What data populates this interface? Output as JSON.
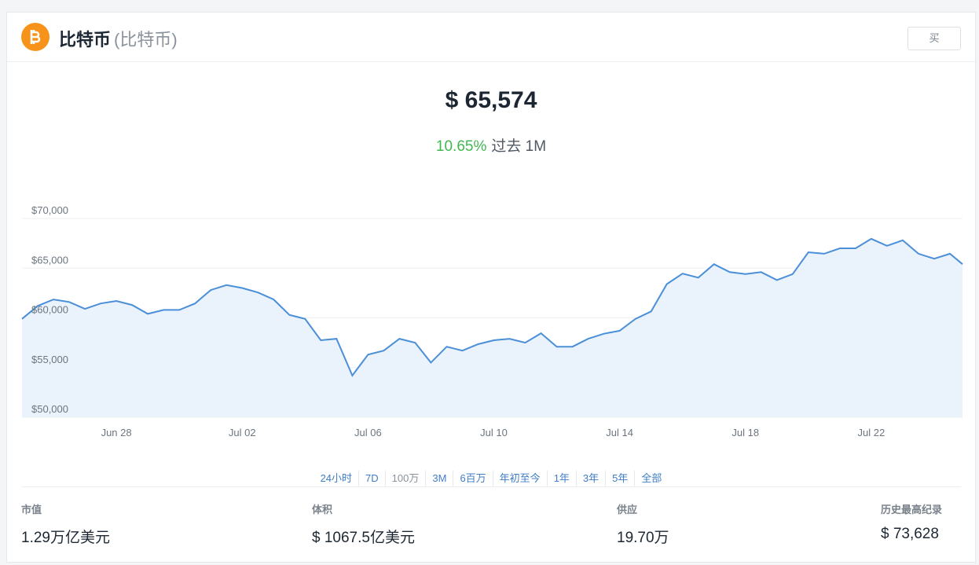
{
  "header": {
    "name": "比特币",
    "subname": "(比特币)",
    "button": "买"
  },
  "price": "$ 65,574",
  "change": {
    "percent": "10.65%",
    "period": "过去 1M"
  },
  "chart_data": {
    "type": "area",
    "color": "#4a8fd8",
    "fill": "#eaf2fc",
    "grid": true,
    "x": [
      0,
      0.5,
      1,
      1.5,
      2,
      2.5,
      3,
      3.5,
      4,
      4.5,
      5,
      5.5,
      6,
      6.5,
      7,
      7.5,
      8,
      8.5,
      9,
      9.5,
      10,
      10.5,
      11,
      11.5,
      12,
      12.5,
      13,
      13.5,
      14,
      14.5,
      15,
      15.5,
      16,
      16.5,
      17,
      17.5,
      18,
      18.5,
      19,
      19.5,
      20,
      20.5,
      21,
      21.5,
      22,
      22.5,
      23,
      23.5,
      24,
      24.5,
      25,
      25.5,
      26,
      26.5,
      27,
      27.5,
      28,
      28.5,
      29,
      29.5,
      29.9
    ],
    "values": [
      59900,
      61200,
      61850,
      61600,
      60900,
      61450,
      61700,
      61300,
      60400,
      60800,
      60800,
      61450,
      62800,
      63300,
      63000,
      62550,
      61850,
      60300,
      59900,
      57750,
      57900,
      54200,
      56300,
      56700,
      57900,
      57500,
      55500,
      57100,
      56700,
      57350,
      57750,
      57900,
      57500,
      58450,
      57100,
      57100,
      57900,
      58400,
      58700,
      59900,
      60650,
      63400,
      64450,
      64050,
      65400,
      64600,
      64400,
      64600,
      63800,
      64400,
      66600,
      66450,
      67000,
      67000,
      67950,
      67250,
      67800,
      66450,
      65950,
      66450,
      65400
    ],
    "xlim": [
      0,
      29.9
    ],
    "xticks": [
      {
        "value": 3,
        "label": "Jun 28"
      },
      {
        "value": 7,
        "label": "Jul 02"
      },
      {
        "value": 11,
        "label": "Jul 06"
      },
      {
        "value": 15,
        "label": "Jul 10"
      },
      {
        "value": 19,
        "label": "Jul 14"
      },
      {
        "value": 23,
        "label": "Jul 18"
      },
      {
        "value": 27,
        "label": "Jul 22"
      }
    ],
    "ylim": [
      50000,
      70000
    ],
    "yticks": [
      {
        "value": 50000,
        "label": "$50,000"
      },
      {
        "value": 55000,
        "label": "$55,000"
      },
      {
        "value": 60000,
        "label": "$60,000"
      },
      {
        "value": 65000,
        "label": "$65,000"
      },
      {
        "value": 70000,
        "label": "$70,000"
      }
    ]
  },
  "ranges": [
    "24小时",
    "7D",
    "100万",
    "3M",
    "6百万",
    "年初至今",
    "1年",
    "3年",
    "5年",
    "全部"
  ],
  "stats": [
    {
      "label": "市值",
      "value": "1.29万亿美元"
    },
    {
      "label": "体积",
      "value": "$ 1067.5亿美元"
    },
    {
      "label": "供应",
      "value": "19.70万"
    },
    {
      "label": "历史最高纪录",
      "value": "$ 73,628"
    }
  ]
}
